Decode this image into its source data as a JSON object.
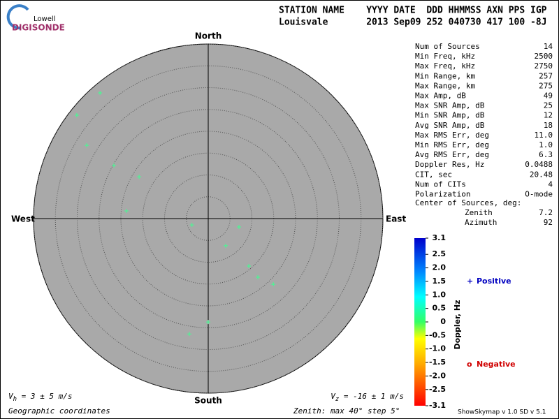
{
  "logo": {
    "top": "Lowell",
    "bottom": "DIGISONDE"
  },
  "header": {
    "labels": "STATION NAME    YYYY DATE  DDD HHMMSS AXN PPS IGP",
    "values": "Louisvale       2013 Sep09 252 040730 417 100 -8J"
  },
  "chart_data": {
    "type": "polar-scatter",
    "directions": {
      "north": "North",
      "south": "South",
      "east": "East",
      "west": "West"
    },
    "rlim": [
      0,
      40
    ],
    "rticks": [
      5,
      10,
      15,
      20,
      25,
      30,
      35,
      40
    ],
    "zenith": [
      38.0,
      38.3,
      32.5,
      24.8,
      18.5,
      18.8,
      4.0,
      7.3,
      7.4,
      14.3,
      17.6,
      21.2,
      23.7,
      26.8
    ],
    "azimuth": [
      319.3,
      308.2,
      301.1,
      299.4,
      301.2,
      275.4,
      248.6,
      105.3,
      147.3,
      139.5,
      139.8,
      135.3,
      180,
      189.3
    ],
    "color": "#40ff90",
    "colorbar": {
      "label": "Doppler, Hz",
      "lim": [
        -3.1,
        3.1
      ],
      "ticks": [
        3.1,
        2.5,
        {
          "value": 2,
          "label": "2.0"
        },
        1.5,
        {
          "value": 1,
          "label": "1.0"
        },
        0.5,
        0,
        -0.5,
        {
          "value": -1,
          "label": "-1.0"
        },
        -1.5,
        {
          "value": -2,
          "label": "-2.0"
        },
        -2.5,
        -3.1
      ]
    },
    "legend": [
      {
        "symbol": "+",
        "label": "Positive",
        "color": "#0000c0"
      },
      {
        "symbol": "o",
        "label": "Negative",
        "color": "#d00000"
      }
    ]
  },
  "stats": {
    "rows": [
      [
        "Num of Sources",
        "14"
      ],
      [
        "Min Freq, kHz",
        "2500"
      ],
      [
        "Max Freq, kHz",
        "2750"
      ],
      [
        "Min Range, km",
        "257"
      ],
      [
        "Max Range, km",
        "275"
      ],
      [
        "Max Amp, dB",
        "49"
      ],
      [
        "Max SNR Amp, dB",
        "25"
      ],
      [
        "Min SNR Amp, dB",
        "12"
      ],
      [
        "Avg SNR Amp, dB",
        "18"
      ],
      [
        "Max RMS Err, deg",
        "11.0"
      ],
      [
        "Min RMS Err, deg",
        "1.0"
      ],
      [
        "Avg RMS Err, deg",
        "6.3"
      ],
      [
        "Doppler Res, Hz",
        "0.0488"
      ],
      [
        "CIT, sec",
        "20.48"
      ],
      [
        "Num of CITs",
        "4"
      ],
      [
        "Polarization",
        "O-mode"
      ]
    ],
    "center_title": "Center of Sources, deg:",
    "center_rows": [
      [
        "Zenith",
        "7.2"
      ],
      [
        "Azimuth",
        "92"
      ]
    ]
  },
  "footer": {
    "vh": {
      "symbol": "V",
      "sub": "h",
      "text": " = 3 ± 5 m/s"
    },
    "vz": {
      "symbol": "V",
      "sub": "z",
      "text": " = -16 ± 1 m/s"
    },
    "coords": "Geographic coordinates",
    "zenith_note": "Zenith: max 40°  step 5°",
    "version": "ShowSkymap v 1.0  SD v 5.1"
  }
}
